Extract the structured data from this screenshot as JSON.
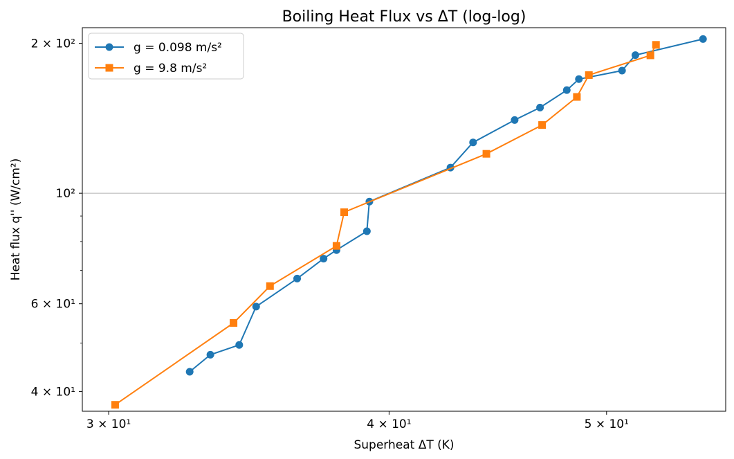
{
  "chart_data": {
    "type": "line",
    "title": "Boiling Heat Flux vs ΔT (log-log)",
    "xlabel": "Superheat ΔT (K)",
    "ylabel": "Heat flux q'' (W/cm²)",
    "xscale": "log",
    "yscale": "log",
    "xlim": [
      29.2,
      56.5
    ],
    "ylim": [
      36.5,
      215
    ],
    "x_major_ticks": [
      {
        "value": 30,
        "label": "3 × 10¹"
      },
      {
        "value": 40,
        "label": "4 × 10¹"
      },
      {
        "value": 50,
        "label": "5 × 10¹"
      }
    ],
    "y_major_ticks": [
      {
        "value": 40,
        "label": "4 × 10¹"
      },
      {
        "value": 60,
        "label": "6 × 10¹"
      },
      {
        "value": 100,
        "label": "10²"
      },
      {
        "value": 200,
        "label": "2 × 10²"
      }
    ],
    "y_minor_ticks": [
      50,
      70,
      80,
      90
    ],
    "grid": "horizontal line at 10²",
    "legend_position": "top-left",
    "series": [
      {
        "name": "g = 0.098 m/s²",
        "color": "#1f77b4",
        "marker": "circle",
        "x": [
          32.6,
          33.3,
          34.3,
          34.9,
          36.4,
          37.4,
          37.9,
          39.1,
          39.2,
          42.6,
          43.6,
          45.5,
          46.7,
          48.0,
          48.6,
          50.8,
          51.5,
          55.2
        ],
        "y": [
          43.8,
          47.4,
          49.6,
          59.2,
          67.4,
          73.9,
          76.9,
          83.9,
          96.2,
          112.6,
          126.5,
          140.3,
          148.6,
          161.1,
          169.5,
          176.3,
          189.4,
          204.0
        ]
      },
      {
        "name": "g = 9.8 m/s²",
        "color": "#ff7f0e",
        "marker": "square",
        "x": [
          30.2,
          34.1,
          35.4,
          37.9,
          38.2,
          44.2,
          46.8,
          48.5,
          49.1,
          52.3,
          52.6
        ],
        "y": [
          37.6,
          54.9,
          65.1,
          78.4,
          91.6,
          120.0,
          137.1,
          156.1,
          172.7,
          189.2,
          198.6
        ]
      }
    ]
  }
}
